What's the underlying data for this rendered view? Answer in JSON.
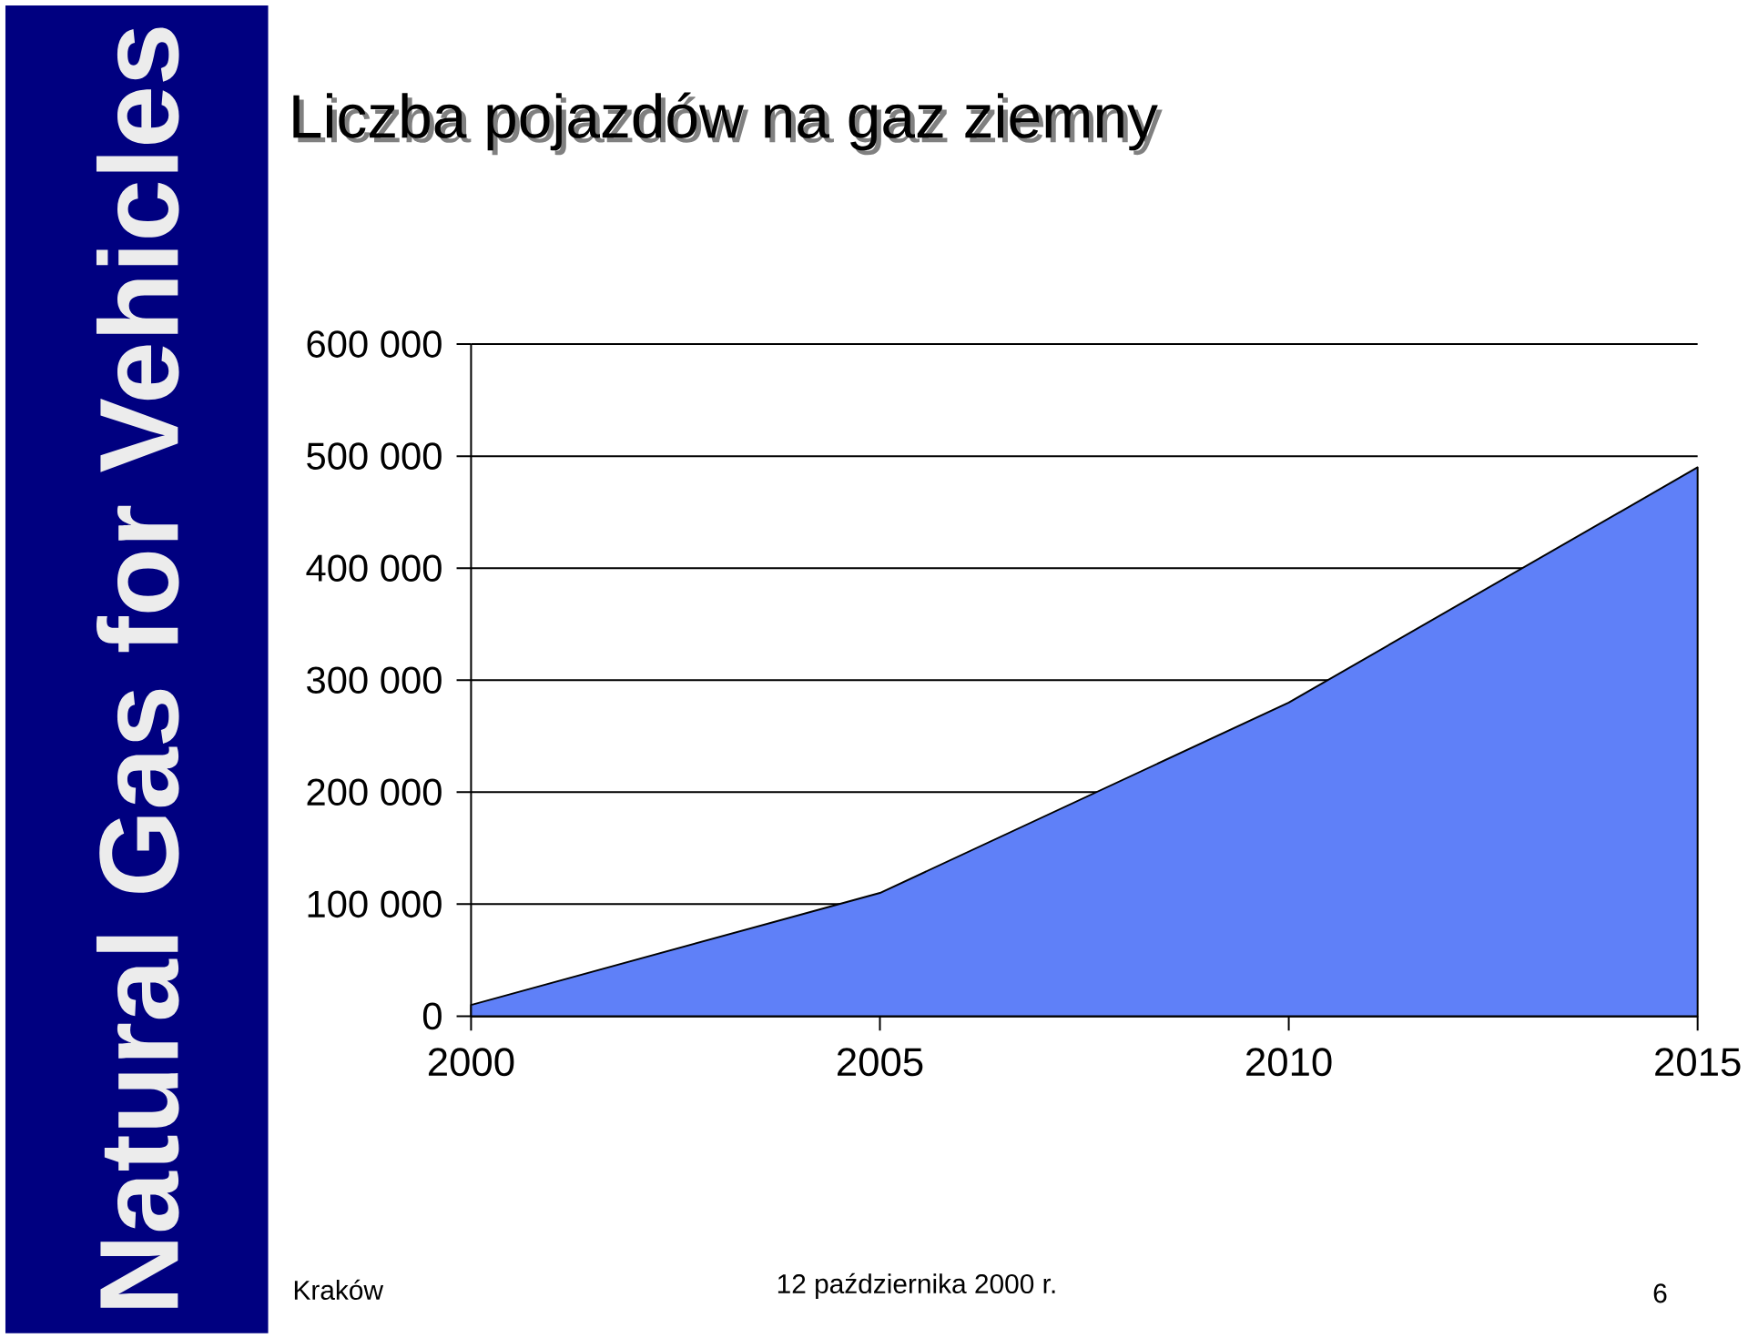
{
  "chart_data": {
    "type": "area",
    "title": "Liczba pojazdów na gaz ziemny",
    "x": [
      2000,
      2005,
      2010,
      2015
    ],
    "values": [
      10000,
      110000,
      280000,
      490000
    ],
    "color": "#5f80f8",
    "xlim": [
      2000,
      2015
    ],
    "xticks": [
      2000,
      2005,
      2010,
      2015
    ],
    "ylim": [
      0,
      600000
    ],
    "yticks": [
      0,
      {
        "value": 100000,
        "label": "100 000"
      },
      {
        "value": 200000,
        "label": "200 000"
      },
      {
        "value": 300000,
        "label": "300 000"
      },
      {
        "value": 400000,
        "label": "400 000"
      },
      {
        "value": 500000,
        "label": "500 000"
      },
      {
        "value": 600000,
        "label": "600 000"
      }
    ],
    "grid": "y",
    "annotations": [
      "Natural Gas for Vehicles",
      "Kraków",
      "12 października 2000 r.",
      "6"
    ]
  }
}
